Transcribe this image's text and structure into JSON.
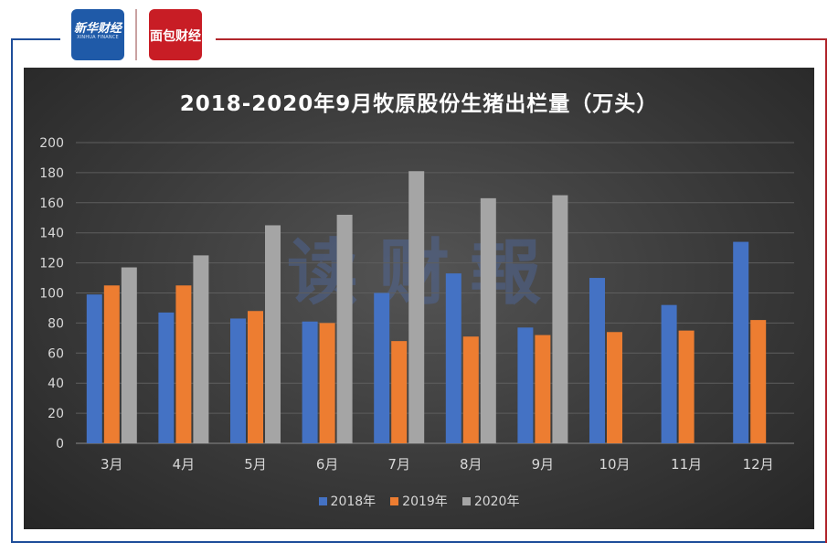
{
  "logos": {
    "xinhua_text": "新华财经",
    "xinhua_sub": "XINHUA FINANCE",
    "mianfang_text": "面包财经"
  },
  "watermark": "读财報",
  "colors": {
    "frame_blue": "#1f4e9a",
    "frame_red": "#b1262c",
    "series_2018": "#4472c4",
    "series_2019": "#ed7d31",
    "series_2020": "#a5a5a5"
  },
  "chart_data": {
    "type": "bar",
    "title": "2018-2020年9月牧原股份生猪出栏量（万头）",
    "categories": [
      "3月",
      "4月",
      "5月",
      "6月",
      "7月",
      "8月",
      "9月",
      "10月",
      "11月",
      "12月"
    ],
    "series": [
      {
        "name": "2018年",
        "values": [
          99,
          87,
          83,
          81,
          100,
          113,
          77,
          110,
          92,
          134
        ]
      },
      {
        "name": "2019年",
        "values": [
          105,
          105,
          88,
          80,
          68,
          71,
          72,
          74,
          75,
          82
        ]
      },
      {
        "name": "2020年",
        "values": [
          117,
          125,
          145,
          152,
          181,
          163,
          165,
          null,
          null,
          null
        ]
      }
    ],
    "ylim": [
      0,
      200
    ],
    "yticks": [
      0,
      20,
      40,
      60,
      80,
      100,
      120,
      140,
      160,
      180,
      200
    ],
    "grid": true,
    "legend_position": "bottom",
    "xlabel": "",
    "ylabel": ""
  }
}
